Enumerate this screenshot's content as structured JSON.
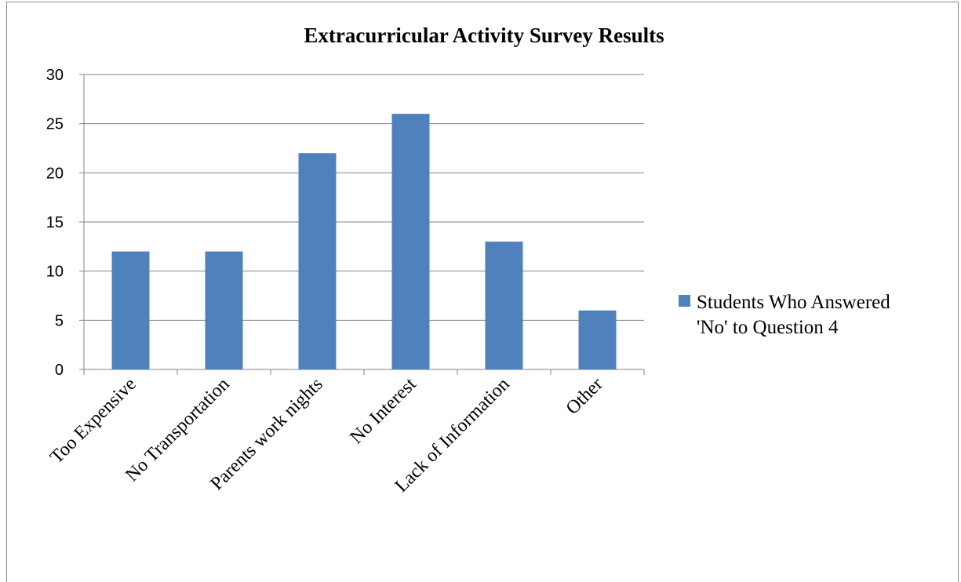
{
  "chart_data": {
    "type": "bar",
    "title": "Extracurricular Activity Survey Results",
    "xlabel": "",
    "ylabel": "",
    "categories": [
      "Too Expensive",
      "No Transportation",
      "Parents work nights",
      "No Interest",
      "Lack of Information",
      "Other"
    ],
    "series": [
      {
        "name": "Students Who Answered 'No' to Question 4",
        "values": [
          12,
          12,
          22,
          26,
          13,
          6
        ],
        "color": "#4F81BD"
      }
    ],
    "ylim": [
      0,
      30
    ],
    "yticks": [
      0,
      5,
      10,
      15,
      20,
      25,
      30
    ],
    "grid": true,
    "legend_position": "right",
    "legend_lines": [
      "Students Who Answered",
      "'No' to Question 4"
    ]
  }
}
